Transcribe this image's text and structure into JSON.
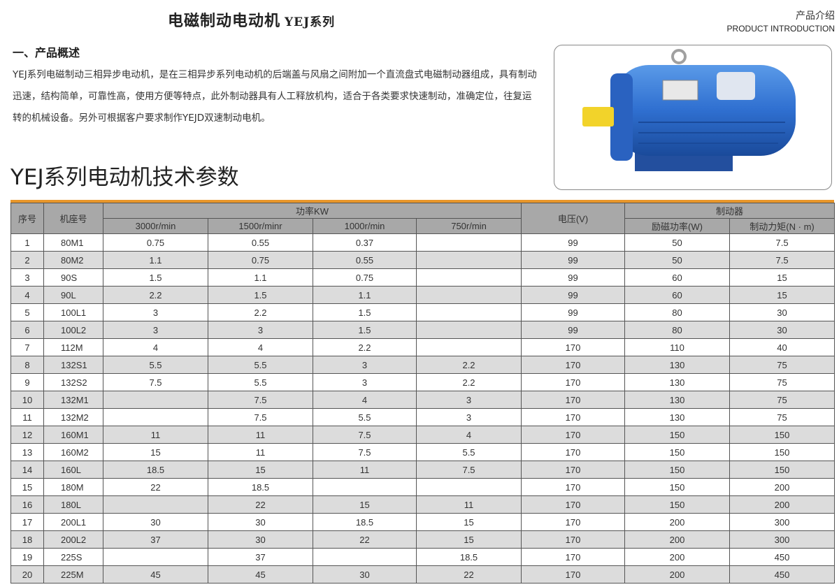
{
  "header": {
    "title": "电磁制动电动机",
    "title_series": "YEJ系列",
    "section_cn": "产品介绍",
    "section_en": "PRODUCT INTRODUCTION"
  },
  "overview": {
    "heading": "一、产品概述",
    "text": "YEJ系列电磁制动三相异步电动机，是在三相异步系列电动机的后端盖与风扇之间附加一个直流盘式电磁制动器组成，具有制动迅速，结构简单，可靠性高，使用方便等特点，此外制动器具有人工释放机构，适合于各类要求快速制动，准确定位，往复运转的机械设备。另外可根据客户要求制作YEJD双速制动电机。"
  },
  "spec": {
    "title": "YEJ系列电动机技术参数"
  },
  "colors": {
    "accent": "#e8962a",
    "header_bg": "#a8a8a8",
    "alt_row": "#dcdcdc",
    "motor": "#2f6fd0"
  },
  "table": {
    "headers": {
      "no": "序号",
      "model": "机座号",
      "power": "功率KW",
      "voltage": "电压(V)",
      "brake": "制动器",
      "speeds": [
        "3000r/min",
        "1500r/minr",
        "1000r/min",
        "750r/min"
      ],
      "excitation": "励磁功率(W)",
      "torque": "制动力矩(N · m)"
    },
    "rows": [
      [
        "1",
        "80M1",
        "0.75",
        "0.55",
        "0.37",
        "",
        "99",
        "50",
        "7.5"
      ],
      [
        "2",
        "80M2",
        "1.1",
        "0.75",
        "0.55",
        "",
        "99",
        "50",
        "7.5"
      ],
      [
        "3",
        "90S",
        "1.5",
        "1.1",
        "0.75",
        "",
        "99",
        "60",
        "15"
      ],
      [
        "4",
        "90L",
        "2.2",
        "1.5",
        "1.1",
        "",
        "99",
        "60",
        "15"
      ],
      [
        "5",
        "100L1",
        "3",
        "2.2",
        "1.5",
        "",
        "99",
        "80",
        "30"
      ],
      [
        "6",
        "100L2",
        "3",
        "3",
        "1.5",
        "",
        "99",
        "80",
        "30"
      ],
      [
        "7",
        "112M",
        "4",
        "4",
        "2.2",
        "",
        "170",
        "110",
        "40"
      ],
      [
        "8",
        "132S1",
        "5.5",
        "5.5",
        "3",
        "2.2",
        "170",
        "130",
        "75"
      ],
      [
        "9",
        "132S2",
        "7.5",
        "5.5",
        "3",
        "2.2",
        "170",
        "130",
        "75"
      ],
      [
        "10",
        "132M1",
        "",
        "7.5",
        "4",
        "3",
        "170",
        "130",
        "75"
      ],
      [
        "11",
        "132M2",
        "",
        "7.5",
        "5.5",
        "3",
        "170",
        "130",
        "75"
      ],
      [
        "12",
        "160M1",
        "11",
        "11",
        "7.5",
        "4",
        "170",
        "150",
        "150"
      ],
      [
        "13",
        "160M2",
        "15",
        "11",
        "7.5",
        "5.5",
        "170",
        "150",
        "150"
      ],
      [
        "14",
        "160L",
        "18.5",
        "15",
        "11",
        "7.5",
        "170",
        "150",
        "150"
      ],
      [
        "15",
        "180M",
        "22",
        "18.5",
        "",
        "",
        "170",
        "150",
        "200"
      ],
      [
        "16",
        "180L",
        "",
        "22",
        "15",
        "11",
        "170",
        "150",
        "200"
      ],
      [
        "17",
        "200L1",
        "30",
        "30",
        "18.5",
        "15",
        "170",
        "200",
        "300"
      ],
      [
        "18",
        "200L2",
        "37",
        "30",
        "22",
        "15",
        "170",
        "200",
        "300"
      ],
      [
        "19",
        "225S",
        "",
        "37",
        "",
        "18.5",
        "170",
        "200",
        "450"
      ],
      [
        "20",
        "225M",
        "45",
        "45",
        "30",
        "22",
        "170",
        "200",
        "450"
      ]
    ]
  }
}
